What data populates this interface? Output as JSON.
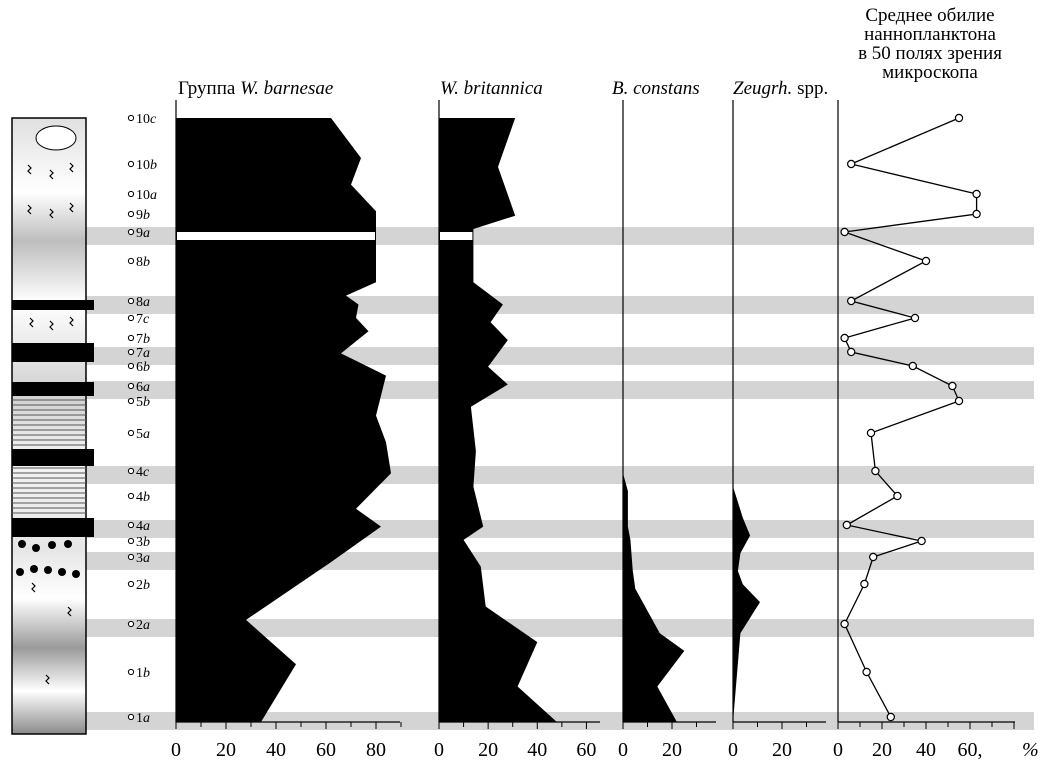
{
  "chart_data": {
    "type": "area",
    "samples": [
      "1a",
      "1b",
      "2a",
      "2b",
      "3a",
      "3b",
      "4a",
      "4b",
      "4c",
      "5a",
      "5b",
      "6a",
      "6b",
      "7a",
      "7b",
      "7c",
      "8a",
      "8b",
      "9a",
      "9b",
      "10a",
      "10b",
      "10c"
    ],
    "sample_italic": [
      "a",
      "b",
      "a",
      "b",
      "a",
      "b",
      "a",
      "b",
      "c",
      "a",
      "b",
      "a",
      "b",
      "a",
      "b",
      "c",
      "a",
      "b",
      "a",
      "b",
      "a",
      "b",
      "c"
    ],
    "sample_number": [
      "1",
      "1",
      "2",
      "2",
      "3",
      "3",
      "4",
      "4",
      "4",
      "5",
      "5",
      "6",
      "6",
      "7",
      "7",
      "7",
      "8",
      "8",
      "9",
      "9",
      "10",
      "10",
      "10"
    ],
    "highlight_samples": [
      "1a",
      "2a",
      "3a",
      "4a",
      "4c",
      "6a",
      "7a",
      "8a",
      "9a"
    ],
    "panels": [
      {
        "key": "barnesae",
        "title_prefix": "Группа ",
        "title_italic": "W. barnesae",
        "title_suffix": "",
        "x_ticks": [
          "0",
          "20",
          "40",
          "60",
          "80"
        ],
        "xlim": [
          0,
          90
        ],
        "profile": [
          {
            "depth": 0,
            "value": 62
          },
          {
            "depth": 0.9,
            "value": 74
          },
          {
            "depth": 1.5,
            "value": 70
          },
          {
            "depth": 2.1,
            "value": 80
          },
          {
            "depth": 2.3,
            "value": 80
          },
          {
            "depth": 2.6,
            "value": 80
          },
          {
            "depth": 3.7,
            "value": 80
          },
          {
            "depth": 4.0,
            "value": 68
          },
          {
            "depth": 4.2,
            "value": 73
          },
          {
            "depth": 4.5,
            "value": 72
          },
          {
            "depth": 4.8,
            "value": 77
          },
          {
            "depth": 5.3,
            "value": 66
          },
          {
            "depth": 5.8,
            "value": 84
          },
          {
            "depth": 6.7,
            "value": 80
          },
          {
            "depth": 7.3,
            "value": 84
          },
          {
            "depth": 8.0,
            "value": 86
          },
          {
            "depth": 8.8,
            "value": 72
          },
          {
            "depth": 9.2,
            "value": 82
          },
          {
            "depth": 10.0,
            "value": 62
          },
          {
            "depth": 11.3,
            "value": 28
          },
          {
            "depth": 12.3,
            "value": 48
          },
          {
            "depth": 13.6,
            "value": 34
          }
        ],
        "gap_sample": "9a"
      },
      {
        "key": "britannica",
        "title_prefix": "",
        "title_italic": "W. britannica",
        "title_suffix": "",
        "x_ticks": [
          "0",
          "20",
          "40",
          "60"
        ],
        "xlim": [
          0,
          70
        ],
        "profile": [
          {
            "depth": 0,
            "value": 31
          },
          {
            "depth": 1.1,
            "value": 24
          },
          {
            "depth": 2.2,
            "value": 31
          },
          {
            "depth": 2.5,
            "value": 14
          },
          {
            "depth": 3.7,
            "value": 14
          },
          {
            "depth": 4.2,
            "value": 26
          },
          {
            "depth": 4.6,
            "value": 21
          },
          {
            "depth": 5.0,
            "value": 28
          },
          {
            "depth": 5.6,
            "value": 20
          },
          {
            "depth": 6.0,
            "value": 28
          },
          {
            "depth": 6.5,
            "value": 13
          },
          {
            "depth": 7.5,
            "value": 15
          },
          {
            "depth": 8.3,
            "value": 14
          },
          {
            "depth": 9.2,
            "value": 18
          },
          {
            "depth": 9.5,
            "value": 10
          },
          {
            "depth": 10.1,
            "value": 17
          },
          {
            "depth": 11.0,
            "value": 19
          },
          {
            "depth": 11.8,
            "value": 40
          },
          {
            "depth": 12.8,
            "value": 32
          },
          {
            "depth": 13.6,
            "value": 48
          }
        ],
        "gap_sample": "9a"
      },
      {
        "key": "constans",
        "title_prefix": "",
        "title_italic": "B. constans",
        "title_suffix": "",
        "x_ticks": [
          "0",
          "20"
        ],
        "xlim": [
          0,
          40
        ],
        "profile": [
          {
            "depth": 0,
            "value": 0
          },
          {
            "depth": 8.0,
            "value": 0
          },
          {
            "depth": 8.4,
            "value": 2
          },
          {
            "depth": 9.2,
            "value": 2
          },
          {
            "depth": 9.5,
            "value": 3
          },
          {
            "depth": 10.2,
            "value": 4
          },
          {
            "depth": 10.6,
            "value": 5
          },
          {
            "depth": 11.6,
            "value": 15
          },
          {
            "depth": 12.0,
            "value": 25
          },
          {
            "depth": 12.8,
            "value": 14
          },
          {
            "depth": 13.6,
            "value": 22
          }
        ],
        "gap_sample": ""
      },
      {
        "key": "zeugrh",
        "title_prefix": "",
        "title_italic": "Zeugrh.",
        "title_suffix": " spp.",
        "x_ticks": [
          "0",
          "20"
        ],
        "xlim": [
          0,
          40
        ],
        "profile": [
          {
            "depth": 0,
            "value": 0
          },
          {
            "depth": 8.3,
            "value": 0
          },
          {
            "depth": 9.0,
            "value": 4
          },
          {
            "depth": 9.4,
            "value": 7
          },
          {
            "depth": 9.8,
            "value": 3
          },
          {
            "depth": 10.2,
            "value": 2
          },
          {
            "depth": 10.5,
            "value": 4
          },
          {
            "depth": 10.9,
            "value": 11
          },
          {
            "depth": 11.6,
            "value": 3
          },
          {
            "depth": 13.6,
            "value": 0
          }
        ],
        "gap_sample": ""
      }
    ],
    "abundance": {
      "title_lines": [
        "Среднее обилие",
        "наннопланктона",
        "в 50 полях зрения",
        "микроскопа"
      ],
      "x_ticks": [
        "0",
        "20",
        "40",
        "60,"
      ],
      "unit": "%",
      "xlim": [
        0,
        90
      ],
      "points": [
        {
          "sample": "1a",
          "value": 24
        },
        {
          "sample": "1b",
          "value": 13
        },
        {
          "sample": "2a",
          "value": 3
        },
        {
          "sample": "2b",
          "value": 12
        },
        {
          "sample": "3a",
          "value": 16
        },
        {
          "sample": "3b",
          "value": 38
        },
        {
          "sample": "4a",
          "value": 4
        },
        {
          "sample": "4b",
          "value": 27
        },
        {
          "sample": "4c",
          "value": 17
        },
        {
          "sample": "5a",
          "value": 15
        },
        {
          "sample": "5b",
          "value": 55
        },
        {
          "sample": "6a",
          "value": 52
        },
        {
          "sample": "6b",
          "value": 34
        },
        {
          "sample": "7a",
          "value": 6
        },
        {
          "sample": "7b",
          "value": 3
        },
        {
          "sample": "7c",
          "value": 35
        },
        {
          "sample": "8a",
          "value": 6
        },
        {
          "sample": "8b",
          "value": 40
        },
        {
          "sample": "9a",
          "value": 3
        },
        {
          "sample": "9b",
          "value": 63
        },
        {
          "sample": "10a",
          "value": 63
        },
        {
          "sample": "10b",
          "value": 6
        },
        {
          "sample": "10c",
          "value": 55
        }
      ]
    }
  }
}
